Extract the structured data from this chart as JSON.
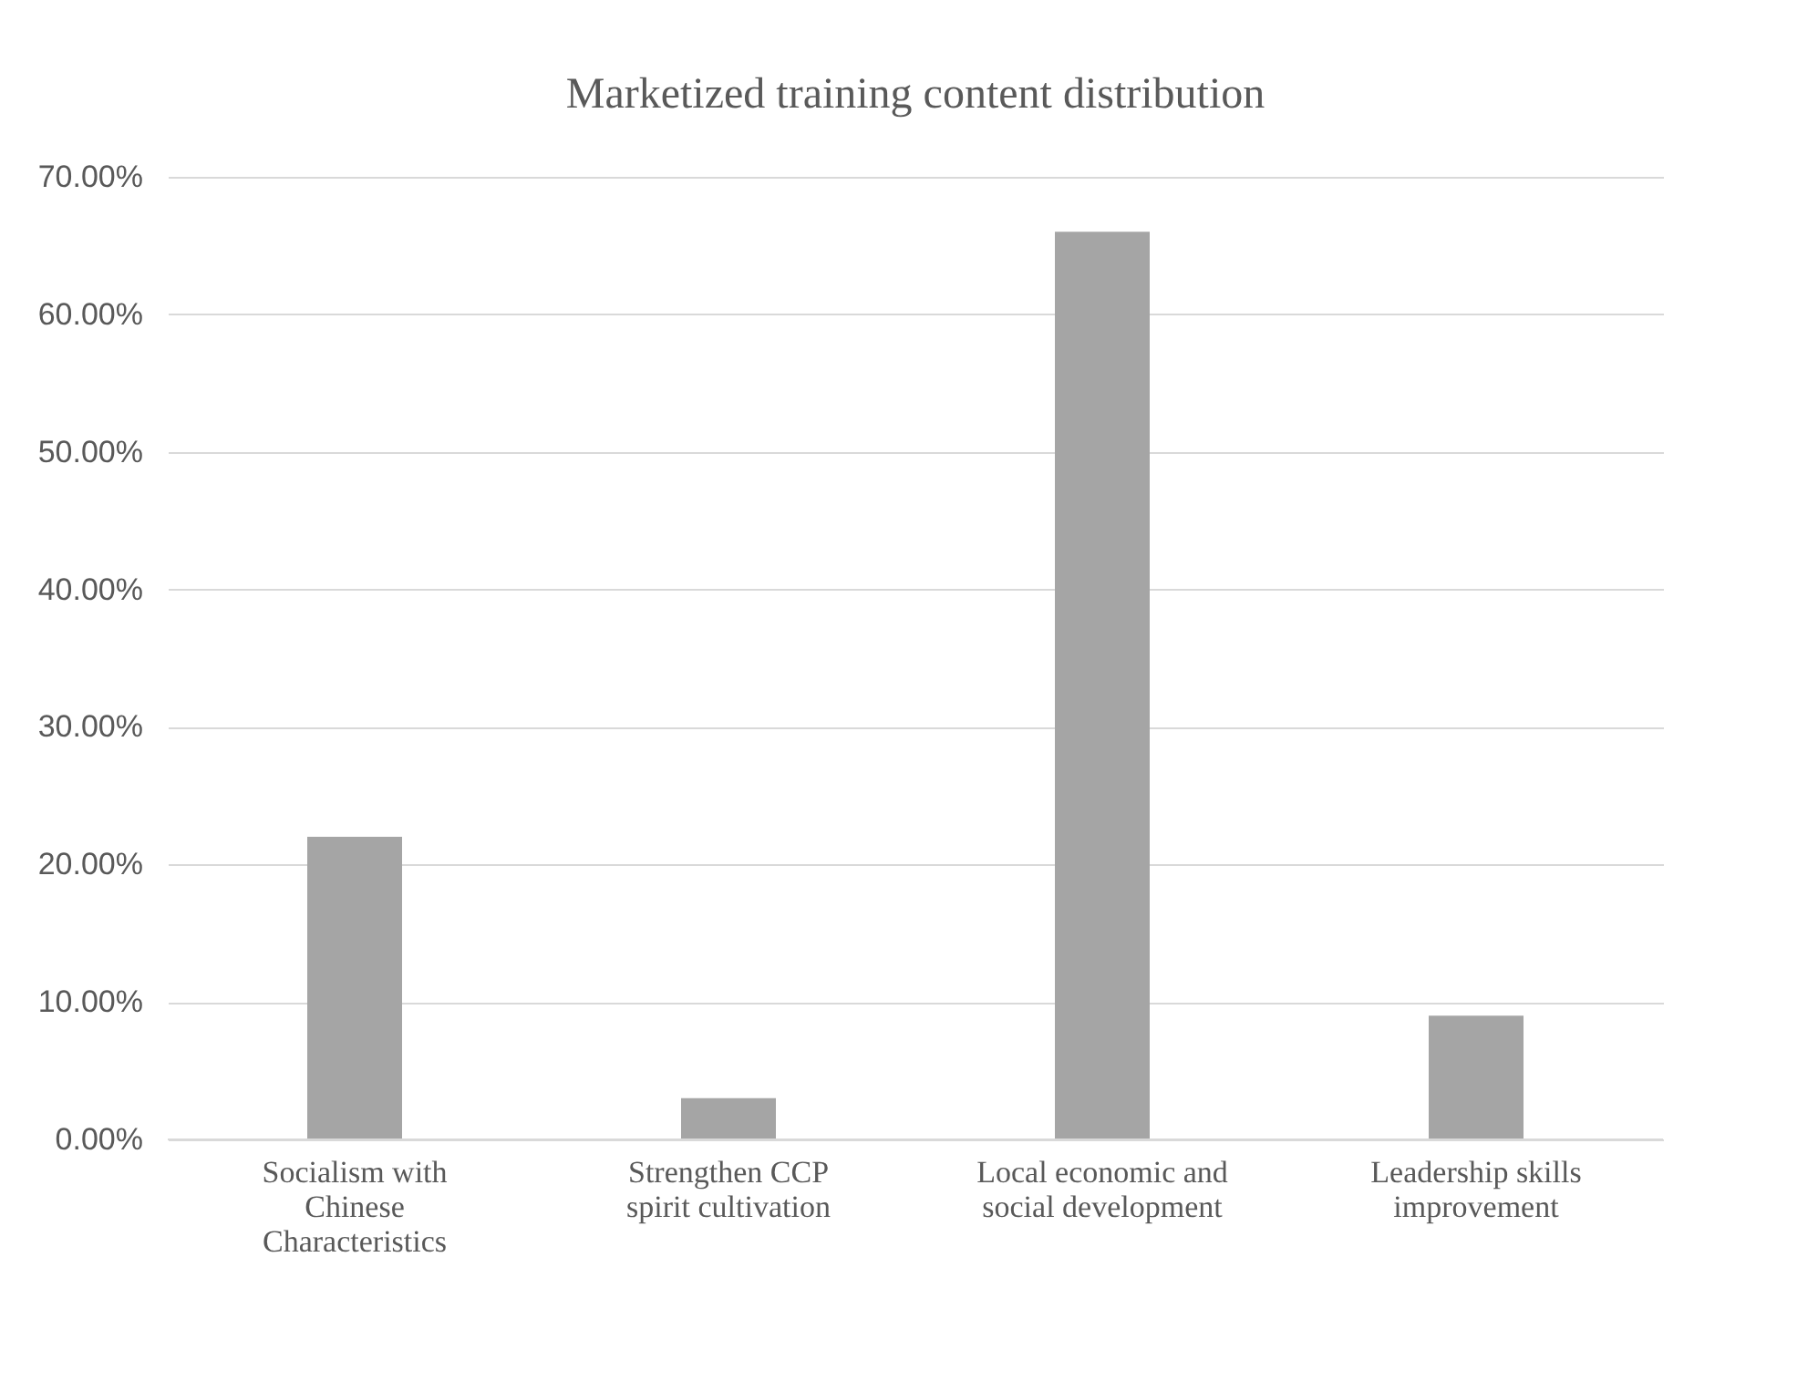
{
  "chart_data": {
    "type": "bar",
    "title": "Marketized training content distribution",
    "categories": [
      "Socialism with Chinese Characteristics",
      "Strengthen CCP spirit cultivation",
      "Local economic and social development",
      "Leadership skills improvement"
    ],
    "values": [
      22,
      3,
      66,
      9
    ],
    "color": "#a5a5a5",
    "ylim": [
      0,
      70
    ],
    "yticks": [
      {
        "value": 0,
        "label": "0.00%"
      },
      {
        "value": 10,
        "label": "10.00%"
      },
      {
        "value": 20,
        "label": "20.00%"
      },
      {
        "value": 30,
        "label": "30.00%"
      },
      {
        "value": 40,
        "label": "40.00%"
      },
      {
        "value": 50,
        "label": "50.00%"
      },
      {
        "value": 60,
        "label": "60.00%"
      },
      {
        "value": 70,
        "label": "70.00%"
      }
    ],
    "grid": "y"
  }
}
